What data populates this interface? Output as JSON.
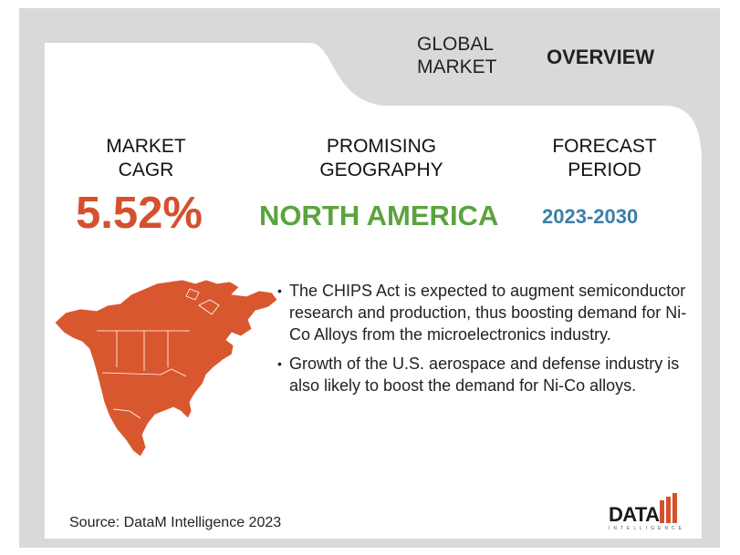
{
  "header": {
    "global_line1": "GLOBAL",
    "global_line2": "MARKET",
    "overview": "OVERVIEW"
  },
  "metrics": {
    "cagr": {
      "label_line1": "MARKET",
      "label_line2": "CAGR",
      "value": "5.52%",
      "color": "#d4502e"
    },
    "geography": {
      "label_line1": "PROMISING",
      "label_line2": "GEOGRAPHY",
      "value": "NORTH AMERICA",
      "color": "#5aa33d"
    },
    "period": {
      "label_line1": "FORECAST",
      "label_line2": "PERIOD",
      "value": "2023-2030",
      "color": "#3b7fa6"
    }
  },
  "bullets": [
    "The CHIPS Act is expected to augment semiconductor research and production, thus boosting demand for Ni-Co Alloys from the microelectronics industry.",
    "Growth of the U.S. aerospace and defense industry is also likely to boost the demand for Ni-Co alloys."
  ],
  "source": "Source: DataM Intelligence  2023",
  "logo": {
    "name": "DATAM",
    "tagline": "INTELLIGENCE"
  },
  "colors": {
    "background_panel": "#d9d9d9",
    "map": "#d9572f",
    "logo_red": "#d4502e"
  }
}
